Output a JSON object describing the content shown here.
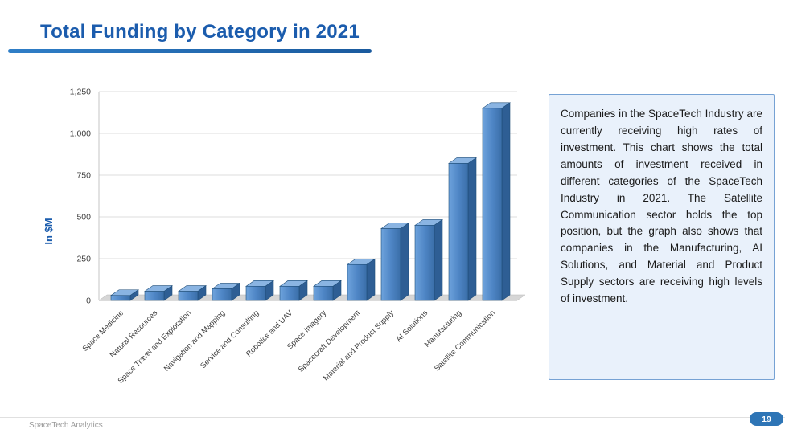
{
  "slide": {
    "title": "Total Funding by Category in 2021",
    "footer_text": "SpaceTech Analytics",
    "page_number": "19"
  },
  "info_box": {
    "text": "Companies in the SpaceTech Industry are currently receiving high rates of investment. This chart shows the total amounts of investment received in different categories of the SpaceTech Industry in 2021. The Satellite Communication sector holds the top position, but the graph also shows that companies in the Manufacturing, AI Solutions, and Material and Product Supply sectors are receiving high levels of investment."
  },
  "chart_data": {
    "type": "bar",
    "title": "Total Funding by Category in 2021",
    "xlabel": "",
    "ylabel": "In $M",
    "ylim": [
      0,
      1250
    ],
    "yticks": [
      0,
      250,
      500,
      750,
      1000,
      1250
    ],
    "ytick_labels": [
      "0",
      "250",
      "500",
      "750",
      "1,000",
      "1,250"
    ],
    "categories": [
      "Space Medicine",
      "Natural Resources",
      "Space Travel and Exploration",
      "Navigation and Mapping",
      "Service and Consulting",
      "Robotics and UAV",
      "Space Imagery",
      "Spacecraft Development",
      "Material and Product Supply",
      "AI Solutions",
      "Manufacturing",
      "Satellite Communication"
    ],
    "values": [
      30,
      55,
      55,
      70,
      85,
      85,
      85,
      215,
      430,
      450,
      820,
      1150
    ],
    "grid": true,
    "legend": false,
    "style": "3d-bar"
  },
  "colors": {
    "title": "#1b5cad",
    "accent_bar": "#2a6fb5",
    "bar_front": "#4f86c6",
    "bar_top": "#8ab4e2",
    "bar_side": "#2e5e94",
    "bar_outline": "#1f4e79",
    "box_bg": "#e9f1fb",
    "box_border": "#76a2d4",
    "page_badge": "#2e75b6"
  }
}
